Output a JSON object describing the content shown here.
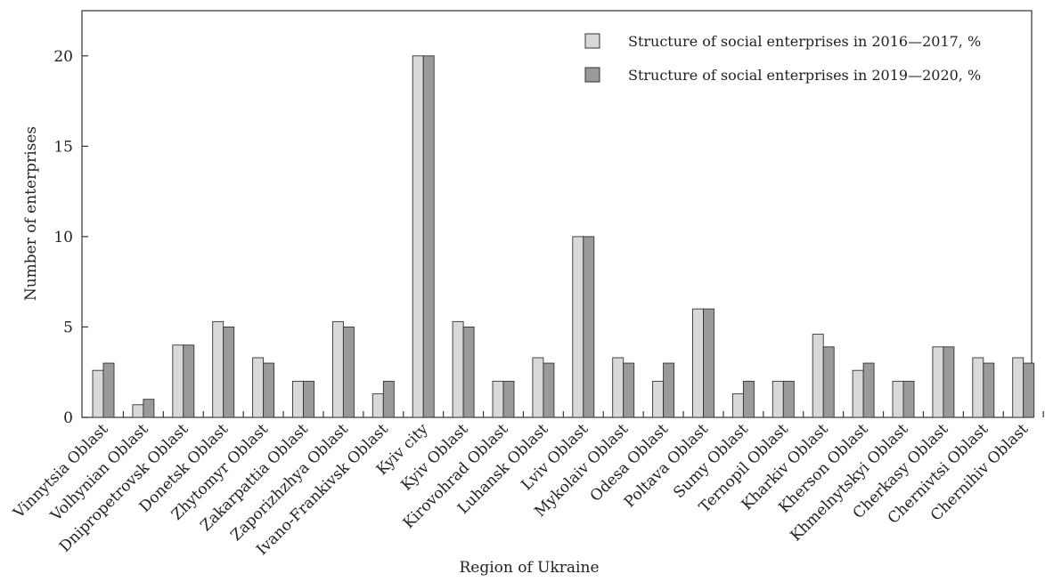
{
  "chart_data": {
    "type": "bar",
    "xlabel": "Region of Ukraine",
    "ylabel": "Number of enterprises",
    "ylim": [
      0,
      22.5
    ],
    "yticks": [
      "0",
      "5",
      "10",
      "15",
      "20"
    ],
    "grid": false,
    "legend_position": "top-right",
    "categories": [
      "Vinnytsia Oblast",
      "Volhynian Oblast",
      "Dnipropetrovsk Oblast",
      "Donetsk Oblast",
      "Zhytomyr Oblast",
      "Zakarpattia Oblast",
      "Zaporizhzhya Oblast",
      "Ivano-Frankivsk Oblast",
      "Kyiv city",
      "Kyiv Oblast",
      "Kirovohrad Oblast",
      "Luhansk Oblast",
      "Lviv Oblast",
      "Mykolaiv Oblast",
      "Odesa Oblast",
      "Poltava Oblast",
      "Sumy Oblast",
      "Ternopil Oblast",
      "Kharkiv Oblast",
      "Kherson Oblast",
      "Khmelnytskyi Oblast",
      "Cherkasy Oblast",
      "Chernivtsi Oblast",
      "Chernihiv Oblast"
    ],
    "series": [
      {
        "name": "Structure of social enterprises in 2016—2017, %",
        "color": "#d9d9d9",
        "values": [
          2.6,
          0.7,
          4.0,
          5.3,
          3.3,
          2.0,
          5.3,
          1.3,
          20.0,
          5.3,
          2.0,
          3.3,
          10.0,
          3.3,
          2.0,
          6.0,
          1.3,
          2.0,
          4.6,
          2.6,
          2.0,
          3.9,
          3.3,
          3.3
        ]
      },
      {
        "name": "Structure of social enterprises in 2019—2020, %",
        "color": "#9a9a9a",
        "values": [
          3.0,
          1.0,
          4.0,
          5.0,
          3.0,
          2.0,
          5.0,
          2.0,
          20.0,
          5.0,
          2.0,
          3.0,
          10.0,
          3.0,
          3.0,
          6.0,
          2.0,
          2.0,
          3.9,
          3.0,
          2.0,
          3.9,
          3.0,
          3.0
        ]
      }
    ]
  }
}
